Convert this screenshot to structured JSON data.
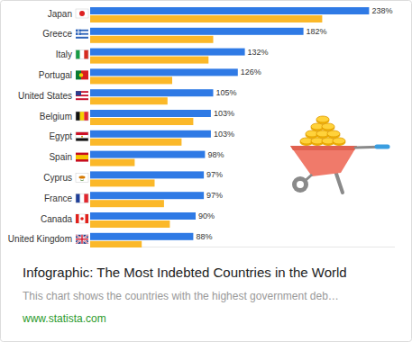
{
  "chart_data": {
    "type": "bar",
    "orientation": "horizontal",
    "categories": [
      "Japan",
      "Greece",
      "Italy",
      "Portugal",
      "United States",
      "Belgium",
      "Egypt",
      "Spain",
      "Cyprus",
      "France",
      "Canada",
      "United Kingdom"
    ],
    "series": [
      {
        "color": "#2f7ae5",
        "values": [
          238,
          182,
          132,
          126,
          105,
          103,
          103,
          98,
          97,
          97,
          90,
          88
        ],
        "value_labels": [
          "238%",
          "182%",
          "132%",
          "126%",
          "105%",
          "103%",
          "103%",
          "98%",
          "97%",
          "97%",
          "90%",
          "88%"
        ],
        "data_labels": true
      },
      {
        "color": "#fbb829",
        "values": [
          198,
          105,
          101,
          70,
          66,
          88,
          78,
          38,
          55,
          63,
          68,
          44
        ],
        "data_labels": false
      }
    ],
    "xlim": [
      0,
      260
    ],
    "tick_labels": false,
    "grid": false
  },
  "card": {
    "title": "Infographic: The Most Indebted Countries in the World",
    "description": "This chart shows the countries with the highest government deb…",
    "source": "www.statista.com"
  }
}
